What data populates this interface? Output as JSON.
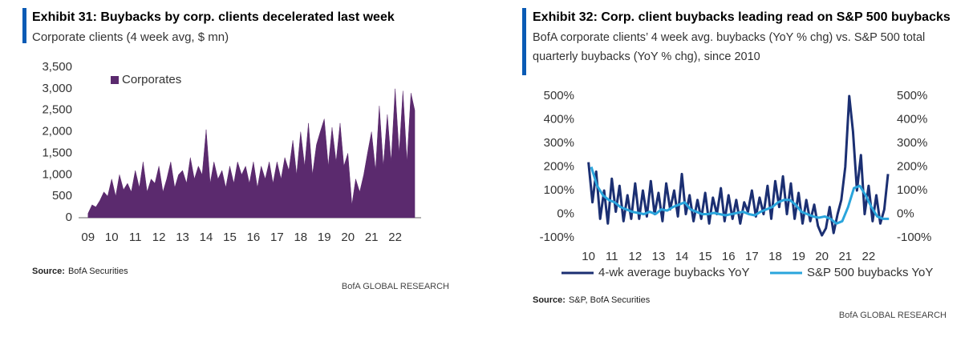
{
  "chart_data": [
    {
      "type": "area",
      "title": "Exhibit 31: Buybacks by corp. clients decelerated last week",
      "subtitle": "Corporate clients (4 week avg, $ mn)",
      "source_label": "Source:",
      "source": "BofA Securities",
      "footer": "BofA GLOBAL RESEARCH",
      "xlim": [
        2008.6,
        2023.1
      ],
      "xticks": [
        {
          "value": 2009,
          "label": "09"
        },
        {
          "value": 2010,
          "label": "10"
        },
        {
          "value": 2011,
          "label": "11"
        },
        {
          "value": 2012,
          "label": "12"
        },
        {
          "value": 2013,
          "label": "13"
        },
        {
          "value": 2014,
          "label": "14"
        },
        {
          "value": 2015,
          "label": "15"
        },
        {
          "value": 2016,
          "label": "16"
        },
        {
          "value": 2017,
          "label": "17"
        },
        {
          "value": 2018,
          "label": "18"
        },
        {
          "value": 2019,
          "label": "19"
        },
        {
          "value": 2020,
          "label": "20"
        },
        {
          "value": 2021,
          "label": "21"
        },
        {
          "value": 2022,
          "label": "22"
        }
      ],
      "ylim": [
        0,
        3500
      ],
      "yticks": [
        0,
        500,
        {
          "value": 1000,
          "label": "1,000"
        },
        {
          "value": 1500,
          "label": "1,500"
        },
        {
          "value": 2000,
          "label": "2,000"
        },
        {
          "value": 2500,
          "label": "2,500"
        },
        {
          "value": 3000,
          "label": "3,000"
        },
        {
          "value": 3500,
          "label": "3,500"
        }
      ],
      "legend": "upper left",
      "series": [
        {
          "name": "Corporates",
          "color": "#5b2a6e",
          "x": [
            2009,
            2009.17,
            2009.33,
            2009.5,
            2009.67,
            2009.83,
            2010,
            2010.17,
            2010.33,
            2010.5,
            2010.67,
            2010.83,
            2011,
            2011.17,
            2011.33,
            2011.5,
            2011.67,
            2011.83,
            2012,
            2012.17,
            2012.33,
            2012.5,
            2012.67,
            2012.83,
            2013,
            2013.17,
            2013.33,
            2013.5,
            2013.67,
            2013.83,
            2014,
            2014.17,
            2014.33,
            2014.5,
            2014.67,
            2014.83,
            2015,
            2015.17,
            2015.33,
            2015.5,
            2015.67,
            2015.83,
            2016,
            2016.17,
            2016.33,
            2016.5,
            2016.67,
            2016.83,
            2017,
            2017.17,
            2017.33,
            2017.5,
            2017.67,
            2017.83,
            2018,
            2018.17,
            2018.33,
            2018.5,
            2018.67,
            2018.83,
            2019,
            2019.17,
            2019.33,
            2019.5,
            2019.67,
            2019.83,
            2020,
            2020.17,
            2020.33,
            2020.5,
            2020.67,
            2020.83,
            2021,
            2021.17,
            2021.33,
            2021.5,
            2021.67,
            2021.83,
            2022,
            2022.17,
            2022.33,
            2022.5,
            2022.67,
            2022.83
          ],
          "values": [
            100,
            300,
            250,
            400,
            600,
            500,
            900,
            500,
            1000,
            650,
            800,
            600,
            1100,
            700,
            1300,
            600,
            900,
            800,
            1200,
            600,
            900,
            1300,
            700,
            1000,
            1100,
            800,
            1400,
            900,
            1200,
            1000,
            2050,
            800,
            1300,
            900,
            1100,
            700,
            1200,
            800,
            1300,
            1000,
            1200,
            800,
            1300,
            700,
            1200,
            900,
            1300,
            800,
            1300,
            900,
            1400,
            1100,
            1800,
            1000,
            2000,
            1200,
            2200,
            1000,
            1700,
            2000,
            2300,
            1200,
            2100,
            1300,
            2200,
            1200,
            1500,
            300,
            900,
            600,
            1000,
            1500,
            2000,
            1100,
            2600,
            1200,
            2400,
            1300,
            3000,
            1500,
            2950,
            1300,
            2900,
            2500
          ]
        }
      ]
    },
    {
      "type": "line",
      "title": "Exhibit 32: Corp. client buybacks leading read on S&P 500 buybacks",
      "subtitle": "BofA corporate clients’ 4 week avg. buybacks (YoY % chg) vs. S&P 500 total quarterly buybacks (YoY % chg), since 2010",
      "source_label": "Source:",
      "source": "S&P, BofA Securities",
      "footer": "BofA GLOBAL RESEARCH",
      "xlim": [
        2009.6,
        2023.0
      ],
      "xticks": [
        {
          "value": 2010,
          "label": "10"
        },
        {
          "value": 2011,
          "label": "11"
        },
        {
          "value": 2012,
          "label": "12"
        },
        {
          "value": 2013,
          "label": "13"
        },
        {
          "value": 2014,
          "label": "14"
        },
        {
          "value": 2015,
          "label": "15"
        },
        {
          "value": 2016,
          "label": "16"
        },
        {
          "value": 2017,
          "label": "17"
        },
        {
          "value": 2018,
          "label": "18"
        },
        {
          "value": 2019,
          "label": "19"
        },
        {
          "value": 2020,
          "label": "20"
        },
        {
          "value": 2021,
          "label": "21"
        },
        {
          "value": 2022,
          "label": "22"
        }
      ],
      "ylim": [
        -100,
        500
      ],
      "yticks": [
        {
          "value": -100,
          "label": "-100%"
        },
        {
          "value": 0,
          "label": "0%"
        },
        {
          "value": 100,
          "label": "100%"
        },
        {
          "value": 200,
          "label": "200%"
        },
        {
          "value": 300,
          "label": "300%"
        },
        {
          "value": 400,
          "label": "400%"
        },
        {
          "value": 500,
          "label": "500%"
        }
      ],
      "y2lim": [
        -100,
        500
      ],
      "y2ticks": [
        {
          "value": -100,
          "label": "-100%"
        },
        {
          "value": 0,
          "label": "0%"
        },
        {
          "value": 100,
          "label": "100%"
        },
        {
          "value": 200,
          "label": "200%"
        },
        {
          "value": 300,
          "label": "300%"
        },
        {
          "value": 400,
          "label": "400%"
        },
        {
          "value": 500,
          "label": "500%"
        }
      ],
      "legend": "bottom",
      "series": [
        {
          "name": "4-wk average buybacks YoY",
          "color": "#1b2f72",
          "x": [
            2010,
            2010.17,
            2010.33,
            2010.5,
            2010.67,
            2010.83,
            2011,
            2011.17,
            2011.33,
            2011.5,
            2011.67,
            2011.83,
            2012,
            2012.17,
            2012.33,
            2012.5,
            2012.67,
            2012.83,
            2013,
            2013.17,
            2013.33,
            2013.5,
            2013.67,
            2013.83,
            2014,
            2014.17,
            2014.33,
            2014.5,
            2014.67,
            2014.83,
            2015,
            2015.17,
            2015.33,
            2015.5,
            2015.67,
            2015.83,
            2016,
            2016.17,
            2016.33,
            2016.5,
            2016.67,
            2016.83,
            2017,
            2017.17,
            2017.33,
            2017.5,
            2017.67,
            2017.83,
            2018,
            2018.17,
            2018.33,
            2018.5,
            2018.67,
            2018.83,
            2019,
            2019.17,
            2019.33,
            2019.5,
            2019.67,
            2019.83,
            2020,
            2020.17,
            2020.33,
            2020.5,
            2020.67,
            2020.83,
            2021,
            2021.17,
            2021.33,
            2021.5,
            2021.67,
            2021.83,
            2022,
            2022.17,
            2022.33,
            2022.5,
            2022.67,
            2022.83
          ],
          "values": [
            220,
            50,
            180,
            -20,
            100,
            -40,
            150,
            10,
            120,
            -30,
            80,
            -20,
            130,
            -20,
            100,
            -10,
            140,
            0,
            90,
            -30,
            130,
            20,
            100,
            -10,
            170,
            0,
            80,
            -30,
            60,
            -20,
            90,
            -40,
            70,
            0,
            110,
            -30,
            80,
            -20,
            60,
            -40,
            50,
            10,
            100,
            -10,
            70,
            0,
            120,
            -20,
            140,
            30,
            160,
            0,
            130,
            -20,
            90,
            -40,
            60,
            -30,
            40,
            -50,
            -90,
            -60,
            30,
            -80,
            0,
            60,
            200,
            500,
            350,
            100,
            250,
            0,
            120,
            -30,
            80,
            -40,
            20,
            170
          ]
        },
        {
          "name": "S&P 500 buybacks YoY",
          "color": "#2aa5dc",
          "axis": "y2",
          "x": [
            2010.12,
            2010.37,
            2010.62,
            2010.87,
            2011.12,
            2011.37,
            2011.62,
            2011.87,
            2012.12,
            2012.37,
            2012.62,
            2012.87,
            2013.12,
            2013.37,
            2013.62,
            2013.87,
            2014.12,
            2014.37,
            2014.62,
            2014.87,
            2015.12,
            2015.37,
            2015.62,
            2015.87,
            2016.12,
            2016.37,
            2016.62,
            2016.87,
            2017.12,
            2017.37,
            2017.62,
            2017.87,
            2018.12,
            2018.37,
            2018.62,
            2018.87,
            2019.12,
            2019.37,
            2019.62,
            2019.87,
            2020.12,
            2020.37,
            2020.62,
            2020.87,
            2021.12,
            2021.37,
            2021.62,
            2021.87,
            2022.12,
            2022.37,
            2022.62,
            2022.87
          ],
          "values": [
            200,
            120,
            80,
            60,
            50,
            30,
            20,
            10,
            5,
            0,
            10,
            0,
            20,
            15,
            30,
            40,
            50,
            20,
            10,
            0,
            0,
            5,
            0,
            -5,
            0,
            5,
            10,
            0,
            -5,
            10,
            20,
            30,
            50,
            60,
            60,
            40,
            10,
            0,
            -10,
            -15,
            -10,
            -20,
            -40,
            -30,
            30,
            110,
            120,
            80,
            30,
            -10,
            -20,
            -20
          ]
        }
      ]
    }
  ]
}
